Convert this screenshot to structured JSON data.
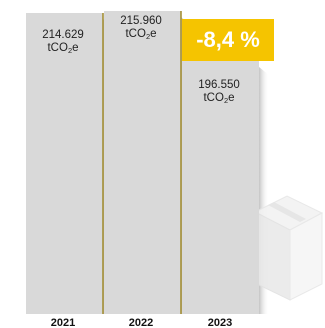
{
  "chart_data": {
    "type": "bar",
    "title": "",
    "xlabel": "",
    "ylabel": "",
    "categories": [
      "2021",
      "2022",
      "2023"
    ],
    "values": [
      214629,
      215960,
      196550
    ],
    "value_labels": [
      "214.629",
      "215.960",
      "196.550"
    ],
    "unit": "tCO₂e",
    "unit_base": "tCO",
    "unit_subscript": "2",
    "unit_suffix": "e",
    "change_label": "-8,4 %",
    "colors": {
      "bar": "#d9d9d9",
      "bar_edge": "#b8b8b8",
      "separator": "#a08a2a",
      "shadow": "#c9c9c9",
      "badge": "#f5c400",
      "badge_text": "#ffffff",
      "box_icon": "#eeeeee"
    }
  },
  "icons": {
    "decoration": "box-icon"
  }
}
